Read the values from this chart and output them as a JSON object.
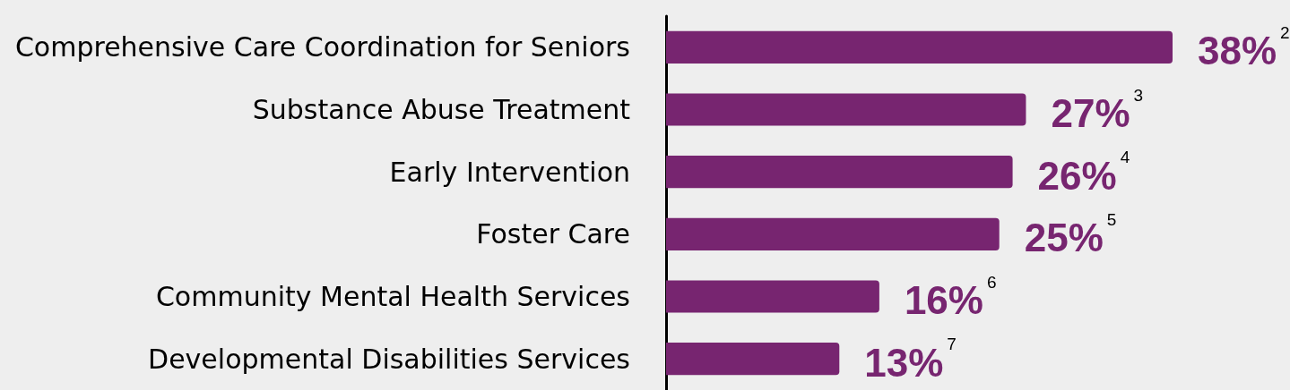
{
  "chart_data": {
    "type": "bar",
    "orientation": "horizontal",
    "categories": [
      "Comprehensive Care Coordination for Seniors",
      "Substance Abuse Treatment",
      "Early Intervention",
      "Foster Care",
      "Community Mental Health Services",
      "Developmental Disabilities Services"
    ],
    "values": [
      38,
      27,
      26,
      25,
      16,
      13
    ],
    "color": "#772570",
    "value_labels": [
      "38%$^{2}$",
      "27%$^{3}$",
      "26%$^{4}$",
      "25%$^{5}$",
      "16%$^{6}$",
      "13%$^{7}$"
    ],
    "tick_labels": "y"
  }
}
